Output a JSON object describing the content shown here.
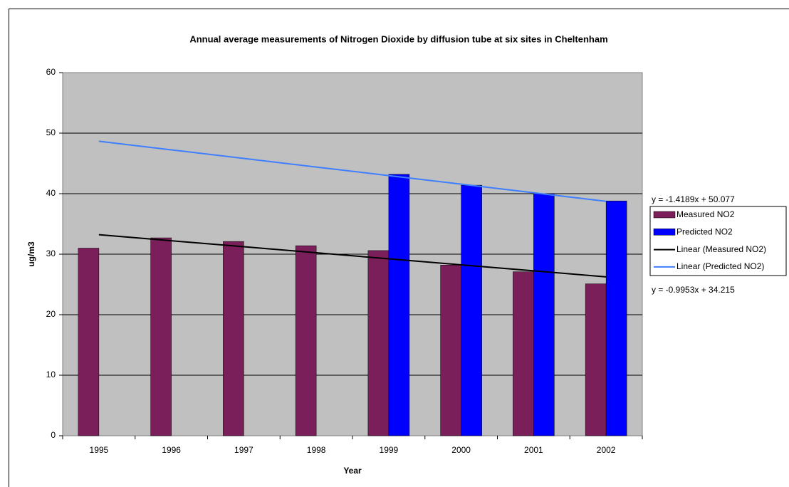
{
  "chart_data": {
    "type": "bar",
    "title": "Annual average measurements of Nitrogen Dioxide by diffusion tube at six sites in Cheltenham",
    "xlabel": "Year",
    "ylabel": "ug/m3",
    "categories": [
      "1995",
      "1996",
      "1997",
      "1998",
      "1999",
      "2000",
      "2001",
      "2002"
    ],
    "series": [
      {
        "name": "Measured NO2",
        "type": "bar",
        "color": "#7b1f5a",
        "values": [
          31,
          32.7,
          32.1,
          31.4,
          30.6,
          28.2,
          27.1,
          25.1
        ]
      },
      {
        "name": "Predicted NO2",
        "type": "bar",
        "color": "#0000ff",
        "values": [
          null,
          null,
          null,
          null,
          43.2,
          41.4,
          40,
          38.8
        ]
      },
      {
        "name": "Linear (Measured NO2)",
        "type": "line",
        "color": "#000000",
        "values": [
          33.22,
          32.22,
          31.23,
          30.23,
          29.24,
          28.24,
          27.25,
          26.25
        ]
      },
      {
        "name": "Linear (Predicted NO2)",
        "type": "line",
        "color": "#3f7fff",
        "values": [
          48.66,
          47.24,
          45.82,
          44.4,
          42.98,
          41.57,
          40.15,
          38.73
        ]
      }
    ],
    "annotations": [
      "y = -1.4189x + 50.077",
      "y = -0.9953x + 34.215"
    ],
    "ylim": [
      0,
      60
    ],
    "yticks": [
      0,
      10,
      20,
      30,
      40,
      50,
      60
    ],
    "grid": true,
    "legend": "right"
  }
}
